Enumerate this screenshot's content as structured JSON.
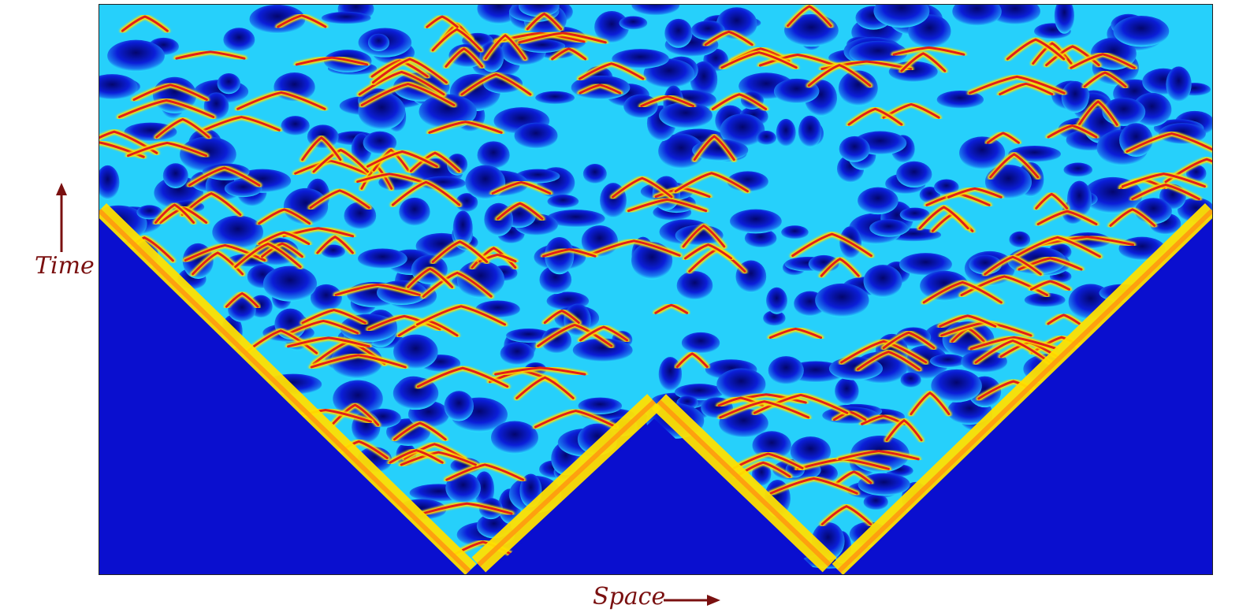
{
  "axes": {
    "y_label": "Time",
    "x_label": "Space"
  },
  "colors": {
    "background_field": "#0a0fcf",
    "wave_core": "#e0201a",
    "wave_edge": "#ffe000",
    "halo": "#29e6ff",
    "label": "#7a1010"
  },
  "pattern": {
    "colormap": "jet",
    "cones": 2
  }
}
